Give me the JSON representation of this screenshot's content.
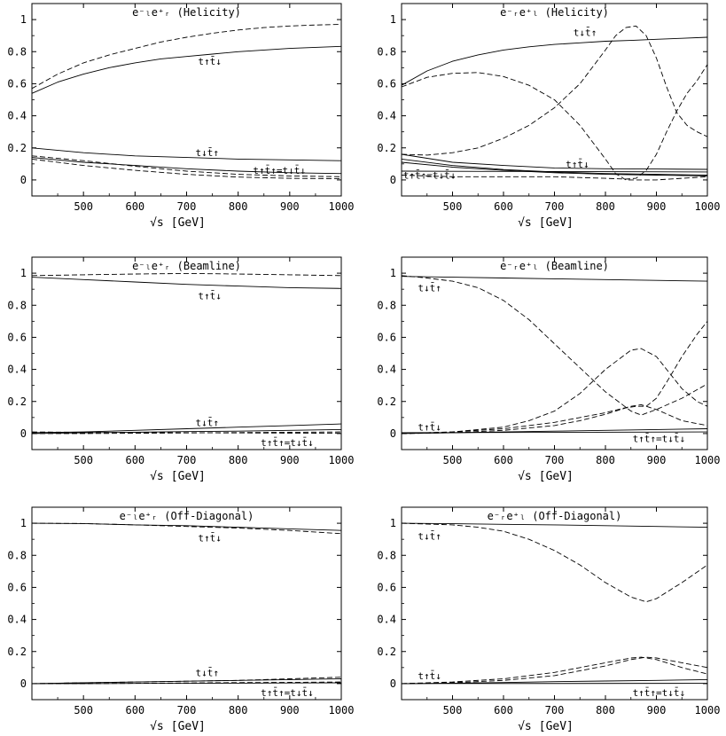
{
  "figure": {
    "xlabel_root": "√s",
    "xlabel_unit": "[GeV]",
    "xtick_labels": [
      "500",
      "600",
      "700",
      "800",
      "900",
      "1000"
    ],
    "ytick_labels": [
      "0",
      "0.2",
      "0.4",
      "0.6",
      "0.8",
      "1"
    ]
  },
  "chart_data": [
    {
      "type": "line",
      "title": "e⁻ₗe⁺ᵣ (Helicity)",
      "xlabel": "√s [GeV]",
      "xlim": [
        400,
        1000
      ],
      "ylim": [
        -0.1,
        1.1
      ],
      "grid": false,
      "labels": [
        {
          "text": "t↑t̄↓",
          "x": 745,
          "y": 0.74
        },
        {
          "text": "t↓t̄↑",
          "x": 740,
          "y": 0.17
        },
        {
          "text": "t↑t̄↑=t↓t̄↓",
          "x": 880,
          "y": 0.06
        }
      ],
      "series": [
        {
          "style": "solid",
          "x": [
            400,
            450,
            500,
            550,
            600,
            650,
            700,
            750,
            800,
            850,
            900,
            950,
            1000
          ],
          "values": [
            0.54,
            0.61,
            0.66,
            0.7,
            0.73,
            0.755,
            0.77,
            0.785,
            0.8,
            0.81,
            0.82,
            0.827,
            0.833
          ]
        },
        {
          "style": "dashed",
          "x": [
            400,
            450,
            500,
            550,
            600,
            650,
            700,
            750,
            800,
            850,
            900,
            950,
            1000
          ],
          "values": [
            0.57,
            0.66,
            0.73,
            0.78,
            0.82,
            0.86,
            0.89,
            0.915,
            0.935,
            0.95,
            0.96,
            0.966,
            0.97
          ]
        },
        {
          "style": "solid",
          "x": [
            400,
            500,
            600,
            700,
            800,
            900,
            1000
          ],
          "values": [
            0.2,
            0.17,
            0.15,
            0.14,
            0.13,
            0.125,
            0.12
          ]
        },
        {
          "style": "solid",
          "x": [
            400,
            500,
            600,
            700,
            800,
            900,
            1000
          ],
          "values": [
            0.14,
            0.11,
            0.09,
            0.07,
            0.055,
            0.045,
            0.04
          ]
        },
        {
          "style": "dashed",
          "x": [
            400,
            500,
            600,
            700,
            800,
            900,
            1000
          ],
          "values": [
            0.15,
            0.12,
            0.085,
            0.055,
            0.035,
            0.025,
            0.02
          ]
        },
        {
          "style": "dashed",
          "x": [
            400,
            500,
            600,
            700,
            800,
            900,
            1000
          ],
          "values": [
            0.13,
            0.09,
            0.06,
            0.035,
            0.018,
            0.01,
            0.008
          ]
        }
      ]
    },
    {
      "type": "line",
      "title": "e⁻ᵣe⁺ₗ (Helicity)",
      "xlabel": "√s [GeV]",
      "xlim": [
        400,
        1000
      ],
      "ylim": [
        -0.1,
        1.1
      ],
      "grid": false,
      "labels": [
        {
          "text": "t↓t̄↑",
          "x": 760,
          "y": 0.92
        },
        {
          "text": "t↑t̄↓",
          "x": 745,
          "y": 0.1
        },
        {
          "text": "t↑t̄↑=t↓t̄↓",
          "x": 455,
          "y": 0.03
        }
      ],
      "series": [
        {
          "style": "solid",
          "x": [
            400,
            450,
            500,
            550,
            600,
            650,
            700,
            750,
            800,
            850,
            900,
            950,
            1000
          ],
          "values": [
            0.59,
            0.68,
            0.74,
            0.78,
            0.81,
            0.83,
            0.845,
            0.855,
            0.865,
            0.87,
            0.877,
            0.883,
            0.89
          ]
        },
        {
          "style": "dashed",
          "x": [
            400,
            450,
            500,
            550,
            600,
            650,
            700,
            750,
            800,
            820,
            840,
            860,
            880,
            900,
            950,
            1000
          ],
          "values": [
            0.58,
            0.64,
            0.665,
            0.67,
            0.645,
            0.59,
            0.5,
            0.34,
            0.13,
            0.04,
            0.0,
            0.0,
            0.0,
            0.0,
            0.01,
            0.02
          ]
        },
        {
          "style": "dashed",
          "x": [
            400,
            450,
            500,
            550,
            600,
            650,
            700,
            750,
            800,
            820,
            840,
            860,
            880,
            900,
            920,
            940,
            960,
            980,
            1000
          ],
          "values": [
            0.16,
            0.155,
            0.17,
            0.2,
            0.26,
            0.34,
            0.45,
            0.6,
            0.81,
            0.9,
            0.95,
            0.96,
            0.9,
            0.76,
            0.58,
            0.42,
            0.34,
            0.3,
            0.27
          ]
        },
        {
          "style": "dashed",
          "x": [
            400,
            500,
            600,
            700,
            800,
            840,
            860,
            880,
            900,
            920,
            940,
            960,
            980,
            1000
          ],
          "values": [
            0.03,
            0.02,
            0.02,
            0.02,
            0.01,
            0.005,
            0.01,
            0.06,
            0.16,
            0.3,
            0.43,
            0.54,
            0.62,
            0.72
          ]
        },
        {
          "style": "solid",
          "x": [
            400,
            500,
            600,
            700,
            800,
            900,
            1000
          ],
          "values": [
            0.16,
            0.11,
            0.09,
            0.075,
            0.07,
            0.068,
            0.066
          ]
        },
        {
          "style": "solid",
          "x": [
            400,
            500,
            600,
            700,
            800,
            900,
            1000
          ],
          "values": [
            0.13,
            0.09,
            0.065,
            0.05,
            0.04,
            0.035,
            0.03
          ]
        },
        {
          "style": "solid",
          "x": [
            400,
            500,
            600,
            700,
            800,
            900,
            1000
          ],
          "values": [
            0.11,
            0.08,
            0.06,
            0.045,
            0.035,
            0.03,
            0.025
          ]
        },
        {
          "style": "solid",
          "x": [
            400,
            1000
          ],
          "values": [
            0.055,
            0.05
          ]
        }
      ]
    },
    {
      "type": "line",
      "title": "e⁻ₗe⁺ᵣ (Beamline)",
      "xlabel": "√s [GeV]",
      "xlim": [
        400,
        1000
      ],
      "ylim": [
        -0.1,
        1.1
      ],
      "grid": false,
      "labels": [
        {
          "text": "t↑t̄↓",
          "x": 745,
          "y": 0.86
        },
        {
          "text": "t↓t̄↑",
          "x": 740,
          "y": 0.07
        },
        {
          "text": "t↑t̄↑=t↓t̄↓",
          "x": 895,
          "y": -0.055
        }
      ],
      "series": [
        {
          "style": "solid",
          "x": [
            400,
            500,
            600,
            700,
            800,
            900,
            1000
          ],
          "values": [
            0.975,
            0.96,
            0.945,
            0.93,
            0.92,
            0.91,
            0.905
          ]
        },
        {
          "style": "dashed",
          "x": [
            400,
            500,
            600,
            700,
            800,
            900,
            1000
          ],
          "values": [
            0.985,
            0.99,
            0.995,
            0.998,
            0.995,
            0.99,
            0.985
          ]
        },
        {
          "style": "solid",
          "x": [
            400,
            500,
            600,
            700,
            800,
            900,
            1000
          ],
          "values": [
            0.005,
            0.01,
            0.02,
            0.03,
            0.04,
            0.05,
            0.06
          ]
        },
        {
          "style": "solid",
          "x": [
            400,
            500,
            600,
            700,
            800,
            900,
            1000
          ],
          "values": [
            0.0,
            0.005,
            0.008,
            0.012,
            0.015,
            0.02,
            0.025
          ]
        },
        {
          "style": "dashed",
          "x": [
            400,
            500,
            600,
            700,
            800,
            900,
            1000
          ],
          "values": [
            0.0,
            0.0,
            0.002,
            0.004,
            0.006,
            0.008,
            0.01
          ]
        },
        {
          "style": "dashed",
          "x": [
            400,
            500,
            600,
            700,
            800,
            900,
            1000
          ],
          "values": [
            0.01,
            0.008,
            0.006,
            0.005,
            0.004,
            0.003,
            0.002
          ]
        }
      ]
    },
    {
      "type": "line",
      "title": "e⁻ᵣe⁺ₗ (Beamline)",
      "xlabel": "√s [GeV]",
      "xlim": [
        400,
        1000
      ],
      "ylim": [
        -0.1,
        1.1
      ],
      "grid": false,
      "labels": [
        {
          "text": "t↓t̄↑",
          "x": 455,
          "y": 0.91
        },
        {
          "text": "t↑t̄↓",
          "x": 455,
          "y": 0.04
        },
        {
          "text": "t↑t̄↑=t↓t̄↓",
          "x": 905,
          "y": -0.03
        }
      ],
      "series": [
        {
          "style": "solid",
          "x": [
            400,
            500,
            600,
            700,
            800,
            900,
            1000
          ],
          "values": [
            0.98,
            0.975,
            0.97,
            0.965,
            0.96,
            0.955,
            0.95
          ]
        },
        {
          "style": "dashed",
          "x": [
            400,
            450,
            500,
            550,
            600,
            650,
            700,
            750,
            800,
            850,
            870,
            900,
            950,
            1000
          ],
          "values": [
            0.985,
            0.97,
            0.95,
            0.91,
            0.83,
            0.71,
            0.56,
            0.41,
            0.26,
            0.14,
            0.115,
            0.15,
            0.22,
            0.31
          ]
        },
        {
          "style": "dashed",
          "x": [
            400,
            500,
            600,
            650,
            700,
            750,
            800,
            850,
            870,
            900,
            920,
            950,
            980,
            1000
          ],
          "values": [
            0.0,
            0.01,
            0.04,
            0.08,
            0.14,
            0.25,
            0.4,
            0.52,
            0.53,
            0.48,
            0.4,
            0.28,
            0.2,
            0.17
          ]
        },
        {
          "style": "dashed",
          "x": [
            400,
            500,
            600,
            700,
            750,
            800,
            840,
            860,
            880,
            900,
            920,
            950,
            980,
            1000
          ],
          "values": [
            0.0,
            0.005,
            0.02,
            0.05,
            0.08,
            0.12,
            0.16,
            0.17,
            0.17,
            0.22,
            0.32,
            0.48,
            0.62,
            0.7
          ]
        },
        {
          "style": "dashed",
          "x": [
            400,
            500,
            600,
            700,
            800,
            850,
            870,
            900,
            950,
            1000
          ],
          "values": [
            0.0,
            0.01,
            0.03,
            0.07,
            0.13,
            0.17,
            0.18,
            0.15,
            0.08,
            0.05
          ]
        },
        {
          "style": "solid",
          "x": [
            400,
            500,
            600,
            700,
            800,
            900,
            1000
          ],
          "values": [
            0.0,
            0.005,
            0.01,
            0.015,
            0.02,
            0.025,
            0.03
          ]
        },
        {
          "style": "solid",
          "x": [
            400,
            1000
          ],
          "values": [
            0.005,
            0.01
          ]
        }
      ]
    },
    {
      "type": "line",
      "title": "e⁻ₗe⁺ᵣ (Off-Diagonal)",
      "xlabel": "√s [GeV]",
      "xlim": [
        400,
        1000
      ],
      "ylim": [
        -0.1,
        1.1
      ],
      "grid": false,
      "labels": [
        {
          "text": "t↑t̄↓",
          "x": 745,
          "y": 0.91
        },
        {
          "text": "t↓t̄↑",
          "x": 740,
          "y": 0.07
        },
        {
          "text": "t↑t̄↑=t↓t̄↓",
          "x": 895,
          "y": -0.055
        }
      ],
      "series": [
        {
          "style": "solid",
          "x": [
            400,
            500,
            600,
            700,
            800,
            900,
            1000
          ],
          "values": [
            1.0,
            0.998,
            0.99,
            0.985,
            0.975,
            0.965,
            0.955
          ]
        },
        {
          "style": "dashed",
          "x": [
            400,
            500,
            600,
            700,
            800,
            900,
            1000
          ],
          "values": [
            1.0,
            0.998,
            0.99,
            0.98,
            0.97,
            0.955,
            0.935
          ]
        },
        {
          "style": "solid",
          "x": [
            400,
            500,
            600,
            700,
            800,
            900,
            1000
          ],
          "values": [
            0.0,
            0.005,
            0.01,
            0.015,
            0.02,
            0.025,
            0.03
          ]
        },
        {
          "style": "dashed",
          "x": [
            400,
            500,
            600,
            700,
            800,
            900,
            1000
          ],
          "values": [
            0.0,
            0.005,
            0.01,
            0.015,
            0.02,
            0.03,
            0.04
          ]
        },
        {
          "style": "dashed",
          "x": [
            400,
            500,
            600,
            700,
            800,
            900,
            1000
          ],
          "values": [
            0.0,
            0.0,
            0.002,
            0.004,
            0.006,
            0.008,
            0.01
          ]
        },
        {
          "style": "solid",
          "x": [
            400,
            500,
            600,
            700,
            800,
            900,
            1000
          ],
          "values": [
            0.0,
            0.0,
            0.001,
            0.002,
            0.003,
            0.004,
            0.005
          ]
        }
      ]
    },
    {
      "type": "line",
      "title": "e⁻ᵣe⁺ₗ (Off-Diagonal)",
      "xlabel": "√s [GeV]",
      "xlim": [
        400,
        1000
      ],
      "ylim": [
        -0.1,
        1.1
      ],
      "grid": false,
      "labels": [
        {
          "text": "t↓t̄↑",
          "x": 455,
          "y": 0.92
        },
        {
          "text": "t↑t̄↓",
          "x": 455,
          "y": 0.05
        },
        {
          "text": "t↑t̄↑=t↓t̄↓",
          "x": 905,
          "y": -0.055
        }
      ],
      "series": [
        {
          "style": "solid",
          "x": [
            400,
            500,
            600,
            700,
            800,
            900,
            1000
          ],
          "values": [
            1.0,
            0.997,
            0.993,
            0.99,
            0.985,
            0.98,
            0.975
          ]
        },
        {
          "style": "dashed",
          "x": [
            400,
            500,
            550,
            600,
            650,
            700,
            750,
            800,
            850,
            880,
            900,
            950,
            1000
          ],
          "values": [
            1.0,
            0.99,
            0.975,
            0.95,
            0.9,
            0.83,
            0.74,
            0.63,
            0.54,
            0.51,
            0.53,
            0.63,
            0.74
          ]
        },
        {
          "style": "dashed",
          "x": [
            400,
            500,
            600,
            700,
            800,
            850,
            880,
            900,
            950,
            1000
          ],
          "values": [
            0.0,
            0.005,
            0.02,
            0.05,
            0.11,
            0.15,
            0.165,
            0.16,
            0.13,
            0.1
          ]
        },
        {
          "style": "dashed",
          "x": [
            400,
            500,
            600,
            700,
            800,
            850,
            870,
            900,
            950,
            1000
          ],
          "values": [
            0.0,
            0.01,
            0.03,
            0.07,
            0.13,
            0.16,
            0.165,
            0.15,
            0.1,
            0.06
          ]
        },
        {
          "style": "solid",
          "x": [
            400,
            500,
            600,
            700,
            800,
            900,
            1000
          ],
          "values": [
            0.0,
            0.003,
            0.007,
            0.012,
            0.016,
            0.02,
            0.025
          ]
        },
        {
          "style": "solid",
          "x": [
            400,
            1000
          ],
          "values": [
            0.0,
            0.002
          ]
        }
      ]
    }
  ]
}
